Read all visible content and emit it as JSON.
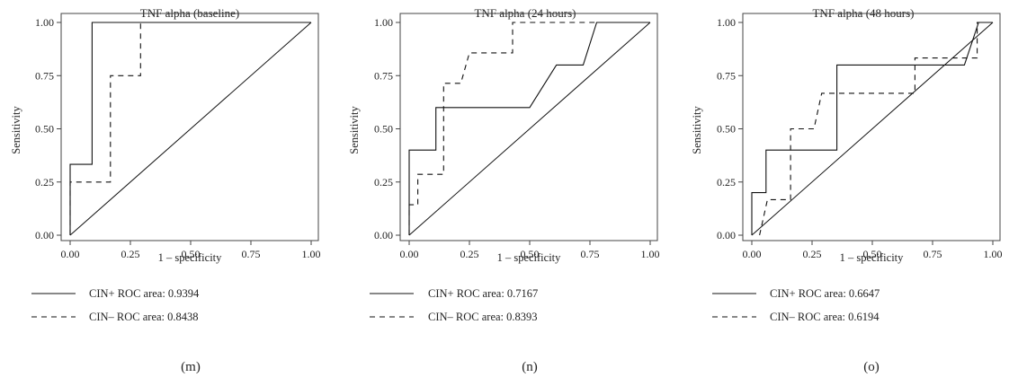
{
  "chart_data": [
    {
      "type": "line",
      "title": "TNF alpha (baseline)",
      "xlabel": "1 – specificity",
      "ylabel": "Sensitivity",
      "xlim": [
        0,
        1
      ],
      "ylim": [
        0,
        1
      ],
      "x_ticks": [
        "0.00",
        "0.25",
        "0.50",
        "0.75",
        "1.00"
      ],
      "y_ticks": [
        "0.00",
        "0.25",
        "0.50",
        "0.75",
        "1.00"
      ],
      "panel_label": "(m)",
      "reference_line": true,
      "series": [
        {
          "name": "CIN+ ROC area: 0.9394",
          "style": "solid",
          "points": [
            [
              0,
              0
            ],
            [
              0,
              0.333
            ],
            [
              0.091,
              0.333
            ],
            [
              0.091,
              1
            ],
            [
              1,
              1
            ]
          ]
        },
        {
          "name": "CIN– ROC area: 0.8438",
          "style": "dashed",
          "points": [
            [
              0,
              0
            ],
            [
              0,
              0.25
            ],
            [
              0.167,
              0.25
            ],
            [
              0.167,
              0.75
            ],
            [
              0.292,
              0.75
            ],
            [
              0.292,
              1
            ],
            [
              1,
              1
            ]
          ]
        }
      ]
    },
    {
      "type": "line",
      "title": "TNF alpha (24 hours)",
      "xlabel": "1 – specificity",
      "ylabel": "Sensitivity",
      "xlim": [
        0,
        1
      ],
      "ylim": [
        0,
        1
      ],
      "x_ticks": [
        "0.00",
        "0.25",
        "0.50",
        "0.75",
        "1.00"
      ],
      "y_ticks": [
        "0.00",
        "0.25",
        "0.50",
        "0.75",
        "1.00"
      ],
      "panel_label": "(n)",
      "reference_line": true,
      "series": [
        {
          "name": "CIN+ ROC area: 0.7167",
          "style": "solid",
          "points": [
            [
              0,
              0
            ],
            [
              0,
              0.4
            ],
            [
              0.111,
              0.4
            ],
            [
              0.111,
              0.6
            ],
            [
              0.5,
              0.6
            ],
            [
              0.611,
              0.8
            ],
            [
              0.722,
              0.8
            ],
            [
              0.778,
              1
            ],
            [
              1,
              1
            ]
          ]
        },
        {
          "name": "CIN– ROC area: 0.8393",
          "style": "dashed",
          "points": [
            [
              0,
              0
            ],
            [
              0,
              0.143
            ],
            [
              0.036,
              0.143
            ],
            [
              0.036,
              0.286
            ],
            [
              0.143,
              0.286
            ],
            [
              0.143,
              0.714
            ],
            [
              0.214,
              0.714
            ],
            [
              0.25,
              0.857
            ],
            [
              0.429,
              0.857
            ],
            [
              0.429,
              1
            ],
            [
              1,
              1
            ]
          ]
        }
      ]
    },
    {
      "type": "line",
      "title": "TNF alpha (48 hours)",
      "xlabel": "1 – specificity",
      "ylabel": "Sensitivity",
      "xlim": [
        0,
        1
      ],
      "ylim": [
        0,
        1
      ],
      "x_ticks": [
        "0.00",
        "0.25",
        "0.50",
        "0.75",
        "1.00"
      ],
      "y_ticks": [
        "0.00",
        "0.25",
        "0.50",
        "0.75",
        "1.00"
      ],
      "panel_label": "(o)",
      "reference_line": true,
      "series": [
        {
          "name": "CIN+ ROC area: 0.6647",
          "style": "solid",
          "points": [
            [
              0,
              0
            ],
            [
              0,
              0.2
            ],
            [
              0.059,
              0.2
            ],
            [
              0.059,
              0.4
            ],
            [
              0.353,
              0.4
            ],
            [
              0.353,
              0.8
            ],
            [
              0.882,
              0.8
            ],
            [
              0.941,
              1
            ],
            [
              1,
              1
            ]
          ]
        },
        {
          "name": "CIN– ROC area: 0.6194",
          "style": "dashed",
          "points": [
            [
              0.032,
              0
            ],
            [
              0.065,
              0.167
            ],
            [
              0.161,
              0.167
            ],
            [
              0.161,
              0.5
            ],
            [
              0.258,
              0.5
            ],
            [
              0.29,
              0.667
            ],
            [
              0.677,
              0.667
            ],
            [
              0.677,
              0.833
            ],
            [
              0.935,
              0.833
            ],
            [
              0.935,
              1
            ],
            [
              1,
              1
            ]
          ]
        }
      ]
    }
  ]
}
